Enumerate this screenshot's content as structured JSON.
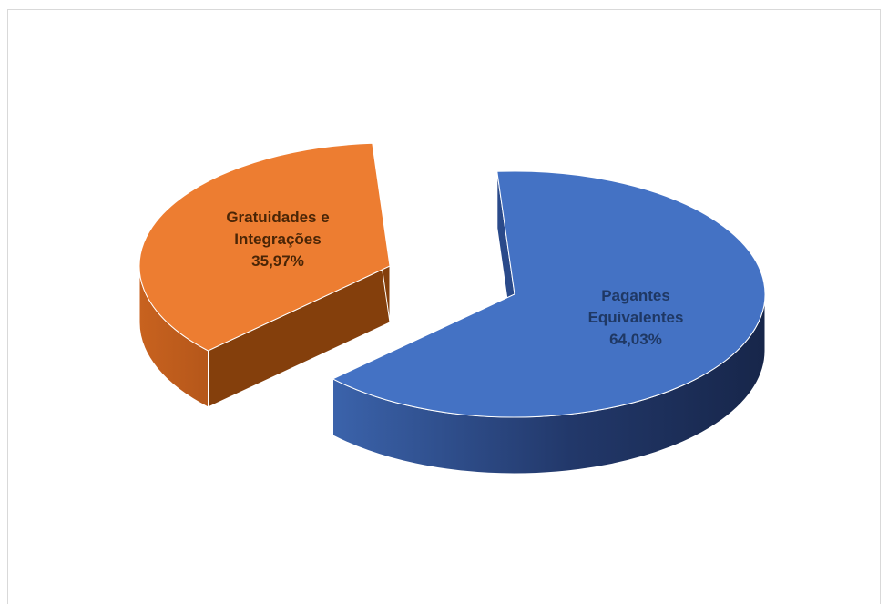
{
  "chart_data": {
    "type": "pie",
    "style": "3d-exploded",
    "title": "",
    "legend": "none",
    "categories": [
      "Pagantes Equivalentes",
      "Gratuidades e Integrações"
    ],
    "values": [
      64.03,
      35.97
    ],
    "value_labels": [
      "64,03%",
      "35,97%"
    ],
    "label_lines": [
      [
        "Pagantes",
        "Equivalentes",
        "64,03%"
      ],
      [
        "Gratuidades  e",
        "Integrações",
        "35,97%"
      ]
    ],
    "colors": [
      "#4472c4",
      "#ed7d31"
    ],
    "label_colors": [
      "#1f3864",
      "#4a2506"
    ]
  }
}
